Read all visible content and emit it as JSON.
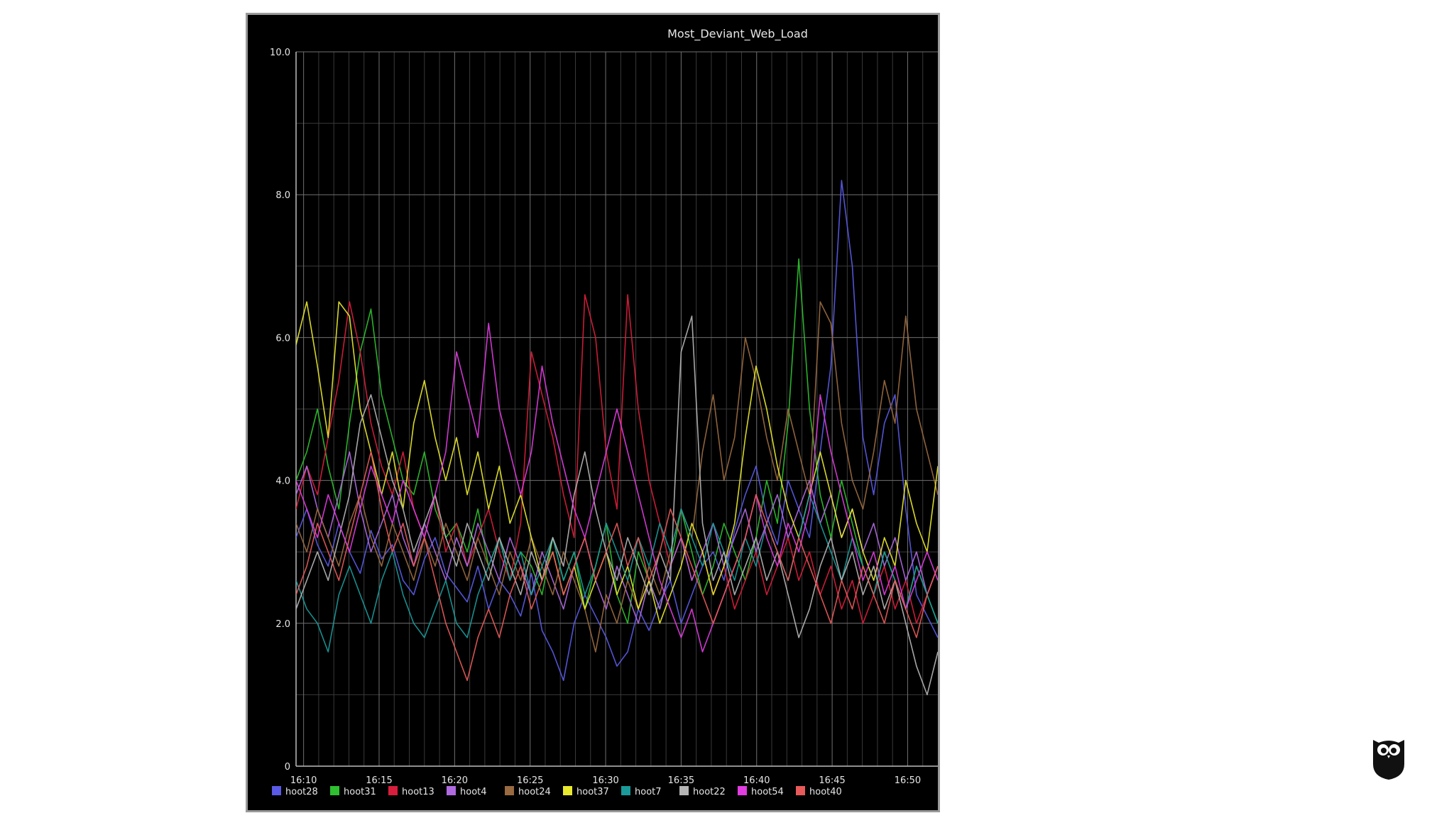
{
  "chart_data": {
    "type": "line",
    "title": "Most_Deviant_Web_Load",
    "xlabel": "",
    "ylabel": "",
    "ylim": [
      0,
      10
    ],
    "y_ticks": [
      "0",
      "2.0",
      "4.0",
      "6.0",
      "8.0",
      "10.0"
    ],
    "x_ticks": [
      "16:10",
      "16:15",
      "16:20",
      "16:25",
      "16:30",
      "16:35",
      "16:40",
      "16:45",
      "16:50"
    ],
    "x_range_minutes": [
      9.5,
      52.0
    ],
    "grid": true,
    "legend_position": "bottom",
    "series": [
      {
        "name": "hoot28",
        "color": "#5a5ae6",
        "values": [
          3.2,
          3.6,
          3.1,
          2.8,
          3.4,
          3.0,
          2.7,
          3.3,
          2.9,
          3.1,
          2.6,
          2.4,
          2.9,
          3.2,
          2.7,
          2.5,
          2.3,
          2.8,
          2.2,
          2.6,
          2.4,
          2.1,
          2.7,
          1.9,
          1.6,
          1.2,
          2.0,
          2.4,
          2.1,
          1.8,
          1.4,
          1.6,
          2.2,
          1.9,
          2.3,
          2.6,
          2.0,
          2.4,
          2.8,
          3.0,
          2.6,
          3.3,
          3.8,
          4.2,
          3.5,
          3.1,
          4.0,
          3.6,
          3.2,
          4.4,
          5.6,
          8.2,
          7.0,
          4.6,
          3.8,
          4.8,
          5.2,
          3.6,
          2.4,
          2.1,
          1.8
        ]
      },
      {
        "name": "hoot31",
        "color": "#2ec02e",
        "values": [
          4.0,
          4.4,
          5.0,
          4.2,
          3.6,
          4.8,
          5.8,
          6.4,
          5.2,
          4.6,
          4.0,
          3.8,
          4.4,
          3.6,
          3.2,
          3.4,
          3.0,
          3.6,
          2.8,
          3.2,
          2.6,
          3.0,
          2.8,
          2.4,
          3.2,
          2.6,
          3.0,
          2.2,
          2.8,
          3.4,
          2.4,
          2.0,
          3.0,
          2.6,
          2.2,
          2.8,
          3.6,
          3.0,
          2.4,
          2.8,
          3.4,
          3.0,
          2.6,
          3.2,
          4.0,
          3.4,
          4.8,
          7.1,
          5.0,
          3.8,
          3.2,
          4.0,
          3.4,
          2.8,
          2.4,
          3.0,
          2.6,
          2.2,
          2.8,
          2.4,
          2.0
        ]
      },
      {
        "name": "hoot13",
        "color": "#d81e3c",
        "values": [
          3.6,
          4.2,
          3.8,
          4.6,
          5.4,
          6.5,
          5.8,
          4.8,
          4.2,
          3.8,
          4.4,
          3.6,
          3.2,
          3.8,
          3.0,
          3.4,
          2.8,
          3.2,
          3.6,
          3.0,
          2.6,
          3.4,
          5.8,
          5.2,
          4.6,
          3.8,
          3.2,
          6.6,
          6.0,
          4.4,
          3.6,
          6.6,
          5.0,
          4.0,
          3.4,
          2.8,
          3.2,
          2.6,
          3.0,
          2.4,
          2.8,
          2.2,
          2.6,
          3.0,
          2.4,
          2.8,
          3.2,
          2.6,
          3.0,
          2.4,
          2.8,
          2.2,
          2.6,
          2.0,
          2.4,
          2.8,
          2.2,
          2.6,
          2.0,
          2.4,
          2.8
        ]
      },
      {
        "name": "hoot4",
        "color": "#b06ae0",
        "values": [
          3.8,
          4.2,
          3.6,
          3.2,
          3.8,
          4.4,
          3.6,
          3.0,
          3.4,
          3.8,
          3.2,
          2.8,
          3.4,
          3.0,
          2.6,
          3.2,
          2.8,
          3.4,
          3.0,
          2.6,
          3.2,
          2.8,
          2.4,
          3.0,
          2.6,
          2.2,
          2.8,
          3.2,
          2.6,
          2.2,
          2.8,
          2.4,
          2.0,
          2.6,
          2.2,
          2.8,
          3.2,
          2.6,
          3.0,
          3.4,
          2.8,
          3.2,
          3.6,
          3.0,
          3.4,
          3.8,
          3.2,
          3.6,
          4.0,
          3.4,
          3.8,
          3.2,
          3.6,
          3.0,
          3.4,
          2.8,
          3.2,
          2.6,
          3.0,
          2.4,
          2.8
        ]
      },
      {
        "name": "hoot24",
        "color": "#9a6a40",
        "values": [
          3.4,
          3.0,
          3.6,
          3.2,
          2.8,
          3.4,
          3.8,
          3.2,
          2.8,
          3.4,
          3.0,
          2.6,
          3.2,
          2.8,
          3.4,
          3.0,
          2.6,
          3.2,
          2.8,
          2.4,
          3.0,
          2.6,
          3.2,
          2.8,
          2.4,
          3.0,
          2.6,
          2.2,
          1.6,
          2.4,
          2.0,
          2.6,
          2.2,
          2.8,
          2.4,
          3.0,
          3.6,
          3.2,
          4.4,
          5.2,
          4.0,
          4.6,
          6.0,
          5.4,
          4.6,
          4.0,
          5.0,
          4.4,
          3.8,
          6.5,
          6.2,
          4.8,
          4.0,
          3.6,
          4.4,
          5.4,
          4.8,
          6.3,
          5.0,
          4.4,
          3.8
        ]
      },
      {
        "name": "hoot37",
        "color": "#e8e82e",
        "values": [
          5.9,
          6.5,
          5.6,
          4.6,
          6.5,
          6.3,
          5.0,
          4.4,
          3.8,
          4.4,
          3.6,
          4.8,
          5.4,
          4.6,
          4.0,
          4.6,
          3.8,
          4.4,
          3.6,
          4.2,
          3.4,
          3.8,
          3.2,
          2.6,
          3.0,
          2.4,
          2.8,
          2.2,
          2.6,
          3.0,
          2.4,
          2.8,
          2.2,
          2.6,
          2.0,
          2.4,
          2.8,
          3.4,
          3.0,
          2.4,
          2.8,
          3.4,
          4.6,
          5.6,
          5.0,
          4.2,
          3.6,
          3.2,
          3.8,
          4.4,
          3.8,
          3.2,
          3.6,
          3.0,
          2.6,
          3.2,
          2.8,
          4.0,
          3.4,
          3.0,
          4.2
        ]
      },
      {
        "name": "hoot7",
        "color": "#1a9a9a",
        "values": [
          2.6,
          2.2,
          2.0,
          1.6,
          2.4,
          2.8,
          2.4,
          2.0,
          2.6,
          3.0,
          2.4,
          2.0,
          1.8,
          2.2,
          2.6,
          2.0,
          1.8,
          2.4,
          2.8,
          3.2,
          2.6,
          3.0,
          2.4,
          2.8,
          3.2,
          2.6,
          3.0,
          2.4,
          2.8,
          3.4,
          3.0,
          2.6,
          3.2,
          2.8,
          3.4,
          3.0,
          3.6,
          3.2,
          2.8,
          3.4,
          3.0,
          2.6,
          3.2,
          2.8,
          3.4,
          3.0,
          2.6,
          3.2,
          3.8,
          3.4,
          3.0,
          2.6,
          3.2,
          2.8,
          2.4,
          3.0,
          2.6,
          2.2,
          2.8,
          2.4,
          2.0
        ]
      },
      {
        "name": "hoot22",
        "color": "#b4b4b4",
        "values": [
          2.2,
          2.6,
          3.0,
          2.6,
          3.2,
          3.8,
          4.8,
          5.2,
          4.6,
          4.0,
          3.6,
          3.0,
          3.4,
          3.8,
          3.2,
          2.8,
          3.4,
          3.0,
          2.6,
          3.2,
          2.8,
          2.4,
          3.0,
          2.6,
          3.2,
          2.8,
          3.8,
          4.4,
          3.6,
          3.0,
          2.6,
          3.2,
          2.8,
          2.4,
          3.0,
          2.6,
          5.8,
          6.3,
          3.4,
          2.6,
          3.0,
          2.4,
          2.8,
          3.2,
          2.6,
          3.0,
          2.4,
          1.8,
          2.2,
          2.8,
          3.2,
          2.6,
          3.0,
          2.4,
          2.8,
          2.2,
          2.6,
          2.0,
          1.4,
          1.0,
          1.6
        ]
      },
      {
        "name": "hoot54",
        "color": "#e03ce0",
        "values": [
          4.0,
          3.6,
          3.2,
          3.8,
          3.4,
          3.0,
          3.6,
          4.2,
          3.8,
          3.4,
          4.0,
          3.6,
          3.2,
          3.8,
          4.4,
          5.8,
          5.2,
          4.6,
          6.2,
          5.0,
          4.4,
          3.8,
          4.4,
          5.6,
          4.8,
          4.2,
          3.6,
          3.2,
          3.8,
          4.4,
          5.0,
          4.4,
          3.8,
          3.2,
          2.6,
          2.2,
          1.8,
          2.2,
          1.6,
          2.0,
          2.4,
          2.8,
          3.2,
          3.8,
          3.2,
          2.8,
          3.4,
          3.0,
          3.6,
          5.2,
          4.4,
          3.8,
          3.2,
          2.6,
          3.0,
          2.4,
          2.8,
          2.2,
          2.6,
          3.0,
          2.6
        ]
      },
      {
        "name": "hoot40",
        "color": "#e85a5a",
        "values": [
          2.4,
          2.8,
          3.4,
          3.0,
          2.6,
          3.2,
          3.8,
          4.4,
          3.6,
          3.0,
          3.4,
          2.8,
          3.2,
          2.6,
          2.0,
          1.6,
          1.2,
          1.8,
          2.2,
          1.8,
          2.4,
          2.8,
          2.2,
          2.6,
          3.0,
          2.4,
          2.8,
          3.2,
          2.6,
          3.0,
          3.4,
          2.8,
          3.2,
          2.6,
          3.0,
          3.6,
          3.2,
          2.8,
          2.4,
          2.0,
          2.4,
          2.8,
          3.2,
          3.8,
          3.4,
          3.0,
          2.6,
          3.2,
          2.8,
          2.4,
          2.0,
          2.6,
          2.2,
          2.8,
          2.4,
          2.0,
          2.6,
          2.2,
          1.8,
          2.4,
          2.8
        ]
      }
    ]
  },
  "branding": {
    "logo_icon": "owl-logo-icon"
  }
}
